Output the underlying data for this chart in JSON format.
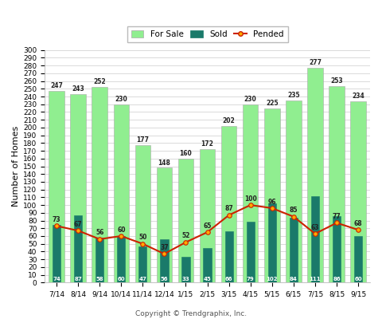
{
  "categories": [
    "7/14",
    "8/14",
    "9/14",
    "10/14",
    "11/14",
    "12/14",
    "1/15",
    "2/15",
    "3/15",
    "4/15",
    "5/15",
    "6/15",
    "7/15",
    "8/15",
    "9/15"
  ],
  "for_sale": [
    247,
    243,
    252,
    230,
    177,
    148,
    160,
    172,
    202,
    230,
    225,
    235,
    277,
    253,
    234
  ],
  "sold": [
    74,
    87,
    58,
    60,
    47,
    56,
    33,
    45,
    66,
    79,
    102,
    84,
    111,
    86,
    60
  ],
  "pended": [
    73,
    67,
    56,
    60,
    50,
    37,
    52,
    65,
    87,
    100,
    96,
    85,
    63,
    77,
    68
  ],
  "for_sale_color": "#90EE90",
  "sold_color": "#1a7a6a",
  "pended_color": "#cc2200",
  "ylabel": "Number of Homes",
  "copyright": "Copyright © Trendgraphix, Inc.",
  "ylim": [
    0,
    300
  ],
  "ytick_step": 10,
  "legend_for_sale": "For Sale",
  "legend_sold": "Sold",
  "legend_pended": "Pended",
  "bg_color": "#ffffff",
  "grid_color": "#cccccc",
  "fs_bar_width": 0.72,
  "sold_bar_width": 0.38
}
